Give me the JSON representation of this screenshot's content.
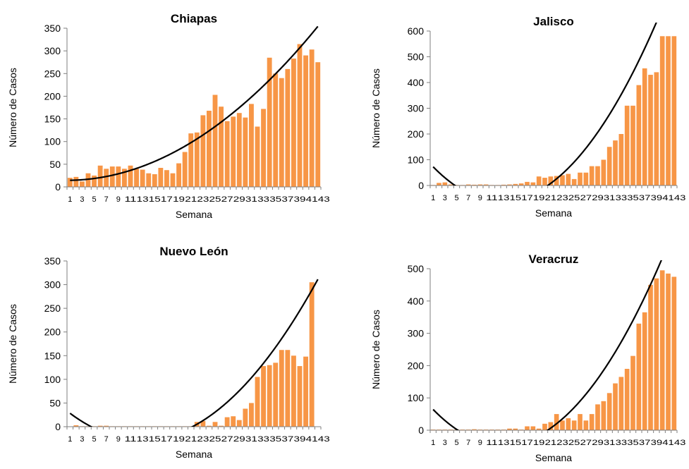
{
  "chart_data": [
    {
      "type": "bar",
      "title": "Chiapas",
      "xlabel": "Semana",
      "ylabel": "Número de Casos",
      "ylim": [
        0,
        350
      ],
      "yticks": [
        0,
        50,
        100,
        150,
        200,
        250,
        300,
        350
      ],
      "xtick_labels": [
        "1",
        "3",
        "5",
        "7",
        "9",
        "11",
        "13",
        "15",
        "17",
        "19",
        "21",
        "23",
        "25",
        "27",
        "29",
        "31",
        "33",
        "35",
        "37",
        "39",
        "41",
        "43"
      ],
      "categories": [
        1,
        2,
        3,
        4,
        5,
        6,
        7,
        8,
        9,
        10,
        11,
        12,
        13,
        14,
        15,
        16,
        17,
        18,
        19,
        20,
        21,
        22,
        23,
        24,
        25,
        26,
        27,
        28,
        29,
        30,
        31,
        32,
        33,
        34,
        35,
        36,
        37,
        38,
        39,
        40,
        41,
        42
      ],
      "values": [
        20,
        22,
        12,
        30,
        25,
        47,
        40,
        45,
        45,
        40,
        47,
        40,
        38,
        30,
        28,
        42,
        37,
        30,
        52,
        77,
        118,
        120,
        158,
        168,
        203,
        177,
        145,
        155,
        163,
        153,
        183,
        133,
        172,
        285,
        250,
        240,
        260,
        283,
        315,
        290,
        303,
        275
      ],
      "trend": {
        "type": "polynomial",
        "coefficients": [
          14.5,
          -0.17,
          0.1965
        ]
      },
      "bar_color": "#F79646",
      "trend_color": "#000000"
    },
    {
      "type": "bar",
      "title": "Jalisco",
      "xlabel": "Semana",
      "ylabel": "Número de Casos",
      "ylim": [
        0,
        600
      ],
      "yticks": [
        0,
        100,
        200,
        300,
        400,
        500,
        600
      ],
      "xtick_labels": [
        "1",
        "3",
        "5",
        "7",
        "9",
        "11",
        "13",
        "15",
        "17",
        "19",
        "21",
        "23",
        "25",
        "27",
        "29",
        "31",
        "33",
        "35",
        "37",
        "39",
        "41",
        "43"
      ],
      "categories": [
        1,
        2,
        3,
        4,
        5,
        6,
        7,
        8,
        9,
        10,
        11,
        12,
        13,
        14,
        15,
        16,
        17,
        18,
        19,
        20,
        21,
        22,
        23,
        24,
        25,
        26,
        27,
        28,
        29,
        30,
        31,
        32,
        33,
        34,
        35,
        36,
        37,
        38,
        39,
        40,
        41,
        42
      ],
      "values": [
        2,
        10,
        12,
        4,
        2,
        2,
        4,
        3,
        4,
        4,
        2,
        2,
        3,
        4,
        6,
        8,
        14,
        12,
        35,
        30,
        35,
        37,
        40,
        45,
        25,
        50,
        50,
        75,
        75,
        100,
        150,
        175,
        200,
        310,
        310,
        390,
        455,
        430,
        440,
        580,
        580,
        580
      ],
      "trend": {
        "type": "polynomial",
        "coefficients": [
          96.9,
          -25.23,
          1.0
        ]
      },
      "bar_color": "#F79646",
      "trend_color": "#000000"
    },
    {
      "type": "bar",
      "title": "Nuevo León",
      "xlabel": "Semana",
      "ylabel": "Número de Casos",
      "ylim": [
        0,
        350
      ],
      "yticks": [
        0,
        50,
        100,
        150,
        200,
        250,
        300,
        350
      ],
      "xtick_labels": [
        "1",
        "3",
        "5",
        "7",
        "9",
        "11",
        "13",
        "15",
        "17",
        "19",
        "21",
        "23",
        "25",
        "27",
        "29",
        "31",
        "33",
        "35",
        "37",
        "39",
        "41",
        "43"
      ],
      "categories": [
        1,
        2,
        3,
        4,
        5,
        6,
        7,
        8,
        9,
        10,
        11,
        12,
        13,
        14,
        15,
        16,
        17,
        18,
        19,
        20,
        21,
        22,
        23,
        24,
        25,
        26,
        27,
        28,
        29,
        30,
        31,
        32,
        33,
        34,
        35,
        36,
        37,
        38,
        39,
        40,
        41,
        42
      ],
      "values": [
        0,
        3,
        1,
        1,
        1,
        2,
        2,
        1,
        1,
        1,
        1,
        1,
        1,
        1,
        1,
        1,
        1,
        1,
        1,
        1,
        1,
        10,
        12,
        2,
        10,
        2,
        20,
        22,
        14,
        38,
        50,
        105,
        128,
        130,
        135,
        162,
        162,
        150,
        128,
        148,
        305,
        0
      ],
      "trend": {
        "type": "polynomial",
        "coefficients": [
          38.2,
          -10.3,
          0.4
        ]
      },
      "bar_color": "#F79646",
      "trend_color": "#000000"
    },
    {
      "type": "bar",
      "title": "Veracruz",
      "xlabel": "Semana",
      "ylabel": "Número de Casos",
      "ylim": [
        0,
        500
      ],
      "yticks": [
        0,
        100,
        200,
        300,
        400,
        500
      ],
      "xtick_labels": [
        "1",
        "3",
        "5",
        "7",
        "9",
        "11",
        "13",
        "15",
        "17",
        "19",
        "21",
        "23",
        "25",
        "27",
        "29",
        "31",
        "33",
        "35",
        "37",
        "39",
        "41",
        "43"
      ],
      "categories": [
        1,
        2,
        3,
        4,
        5,
        6,
        7,
        8,
        9,
        10,
        11,
        12,
        13,
        14,
        15,
        16,
        17,
        18,
        19,
        20,
        21,
        22,
        23,
        24,
        25,
        26,
        27,
        28,
        29,
        30,
        31,
        32,
        33,
        34,
        35,
        36,
        37,
        38,
        39,
        40,
        41,
        42
      ],
      "values": [
        2,
        2,
        2,
        2,
        2,
        2,
        2,
        3,
        2,
        2,
        2,
        2,
        2,
        5,
        5,
        2,
        12,
        12,
        5,
        20,
        25,
        50,
        30,
        37,
        30,
        50,
        30,
        50,
        80,
        90,
        115,
        145,
        165,
        190,
        230,
        330,
        365,
        450,
        470,
        495,
        485,
        475
      ],
      "trend": {
        "type": "polynomial",
        "coefficients": [
          83.6,
          -20.16,
          0.785
        ]
      },
      "bar_color": "#F79646",
      "trend_color": "#000000"
    }
  ]
}
